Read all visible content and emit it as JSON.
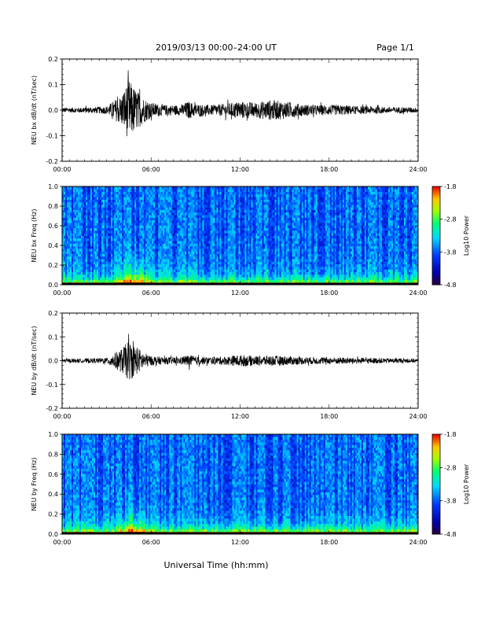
{
  "header": {
    "title": "2019/03/13  00:00–24:00 UT",
    "page": "Page 1/1"
  },
  "footer": {
    "xlabel": "Universal Time (hh:mm)"
  },
  "colorbar_label": "Log10 Power",
  "chart_data": [
    {
      "type": "line",
      "ylabel": "NEU bx dB/dt (nT/sec)",
      "ylim": [
        -0.2,
        0.2
      ],
      "yticks": [
        "0.2",
        "0.1",
        "0.0",
        "-0.1",
        "-0.2"
      ],
      "xlim": [
        "00:00",
        "24:00"
      ],
      "xticks": [
        "00:00",
        "06:00",
        "12:00",
        "18:00",
        "24:00"
      ],
      "grid": false,
      "series": [
        {
          "x": [
            "00:00",
            "01:00",
            "02:00",
            "03:00",
            "04:00",
            "04:30",
            "05:00",
            "05:30",
            "06:00",
            "07:00",
            "08:00",
            "08:30",
            "09:00",
            "10:00",
            "11:00",
            "12:00",
            "13:00",
            "14:00",
            "15:00",
            "16:00",
            "17:00",
            "18:00",
            "19:00",
            "20:00",
            "21:00",
            "22:00",
            "23:00",
            "24:00"
          ],
          "envelope": [
            0.01,
            0.01,
            0.012,
            0.015,
            0.06,
            0.12,
            0.08,
            0.05,
            0.03,
            0.02,
            0.02,
            0.035,
            0.025,
            0.02,
            0.025,
            0.035,
            0.03,
            0.04,
            0.035,
            0.025,
            0.02,
            0.02,
            0.02,
            0.015,
            0.015,
            0.012,
            0.012,
            0.01
          ]
        }
      ]
    },
    {
      "type": "heatmap",
      "ylabel": "NEU bx Freq (Hz)",
      "ylim": [
        0.0,
        1.0
      ],
      "yticks": [
        "1.0",
        "0.8",
        "0.6",
        "0.4",
        "0.2",
        "0.0"
      ],
      "xlim": [
        "00:00",
        "24:00"
      ],
      "xticks": [
        "00:00",
        "06:00",
        "12:00",
        "18:00",
        "24:00"
      ],
      "colorbar": {
        "min": -4.8,
        "max": -1.8,
        "ticks": [
          "-1.8",
          "-2.8",
          "-3.8",
          "-4.8"
        ]
      }
    },
    {
      "type": "line",
      "ylabel": "NEU by dB/dt (nT/sec)",
      "ylim": [
        -0.2,
        0.2
      ],
      "yticks": [
        "0.2",
        "0.1",
        "0.0",
        "-0.1",
        "-0.2"
      ],
      "xlim": [
        "00:00",
        "24:00"
      ],
      "xticks": [
        "00:00",
        "06:00",
        "12:00",
        "18:00",
        "24:00"
      ],
      "grid": false,
      "series": [
        {
          "x": [
            "00:00",
            "01:00",
            "02:00",
            "03:00",
            "04:00",
            "04:30",
            "05:00",
            "05:30",
            "06:00",
            "07:00",
            "08:00",
            "08:30",
            "09:00",
            "10:00",
            "11:00",
            "12:00",
            "13:00",
            "14:00",
            "15:00",
            "16:00",
            "17:00",
            "18:00",
            "19:00",
            "20:00",
            "21:00",
            "22:00",
            "23:00",
            "24:00"
          ],
          "envelope": [
            0.008,
            0.008,
            0.01,
            0.012,
            0.05,
            0.085,
            0.06,
            0.035,
            0.02,
            0.015,
            0.015,
            0.025,
            0.018,
            0.015,
            0.018,
            0.025,
            0.02,
            0.022,
            0.02,
            0.016,
            0.015,
            0.014,
            0.014,
            0.012,
            0.012,
            0.01,
            0.01,
            0.008
          ]
        }
      ]
    },
    {
      "type": "heatmap",
      "ylabel": "NEU by Freq (Hz)",
      "ylim": [
        0.0,
        1.0
      ],
      "yticks": [
        "1.0",
        "0.8",
        "0.6",
        "0.4",
        "0.2",
        "0.0"
      ],
      "xlim": [
        "00:00",
        "24:00"
      ],
      "xticks": [
        "00:00",
        "06:00",
        "12:00",
        "18:00",
        "24:00"
      ],
      "colorbar": {
        "min": -4.8,
        "max": -1.8,
        "ticks": [
          "-1.8",
          "-2.8",
          "-3.8",
          "-4.8"
        ]
      }
    }
  ]
}
